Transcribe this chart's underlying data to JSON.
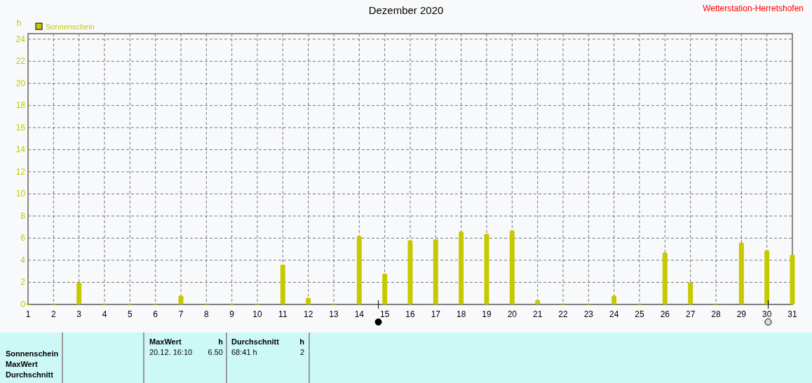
{
  "chart_data": {
    "type": "bar",
    "title": "Dezember 2020",
    "ylabel": "h",
    "x": [
      1,
      2,
      3,
      4,
      5,
      6,
      7,
      8,
      9,
      10,
      11,
      12,
      13,
      14,
      15,
      16,
      17,
      18,
      19,
      20,
      21,
      22,
      23,
      24,
      25,
      26,
      27,
      28,
      29,
      30,
      31
    ],
    "series": [
      {
        "name": "Sonnenschein",
        "color": "#c8c800",
        "values": [
          0.1,
          0.1,
          2.0,
          0.1,
          0.1,
          0.1,
          0.8,
          0.1,
          0.1,
          0.1,
          3.6,
          0.6,
          0.1,
          6.2,
          2.8,
          5.8,
          5.9,
          6.6,
          6.4,
          6.7,
          0.4,
          0.1,
          0.1,
          0.8,
          0.1,
          4.7,
          2.0,
          0.1,
          5.6,
          4.9,
          4.5
        ]
      }
    ],
    "xlim": [
      1,
      31
    ],
    "xticks": [
      1,
      2,
      3,
      4,
      5,
      6,
      7,
      8,
      9,
      10,
      11,
      12,
      13,
      14,
      15,
      16,
      17,
      18,
      19,
      20,
      21,
      22,
      23,
      24,
      25,
      26,
      27,
      28,
      29,
      30,
      31
    ],
    "ylim": [
      0,
      24.5
    ],
    "yticks": [
      0,
      2,
      4,
      6,
      8,
      10,
      12,
      14,
      16,
      18,
      20,
      22,
      24
    ],
    "grid": true,
    "legend": "top left",
    "annotations": [
      "Wetterstation-Herretshofen",
      "Sonnenschein",
      "MaxWert",
      "Durchschnitt",
      "MaxWert",
      "h",
      "Durchschnitt",
      "h",
      "20.12.  16:10",
      "6.50",
      "68:41 h",
      "2"
    ]
  }
}
